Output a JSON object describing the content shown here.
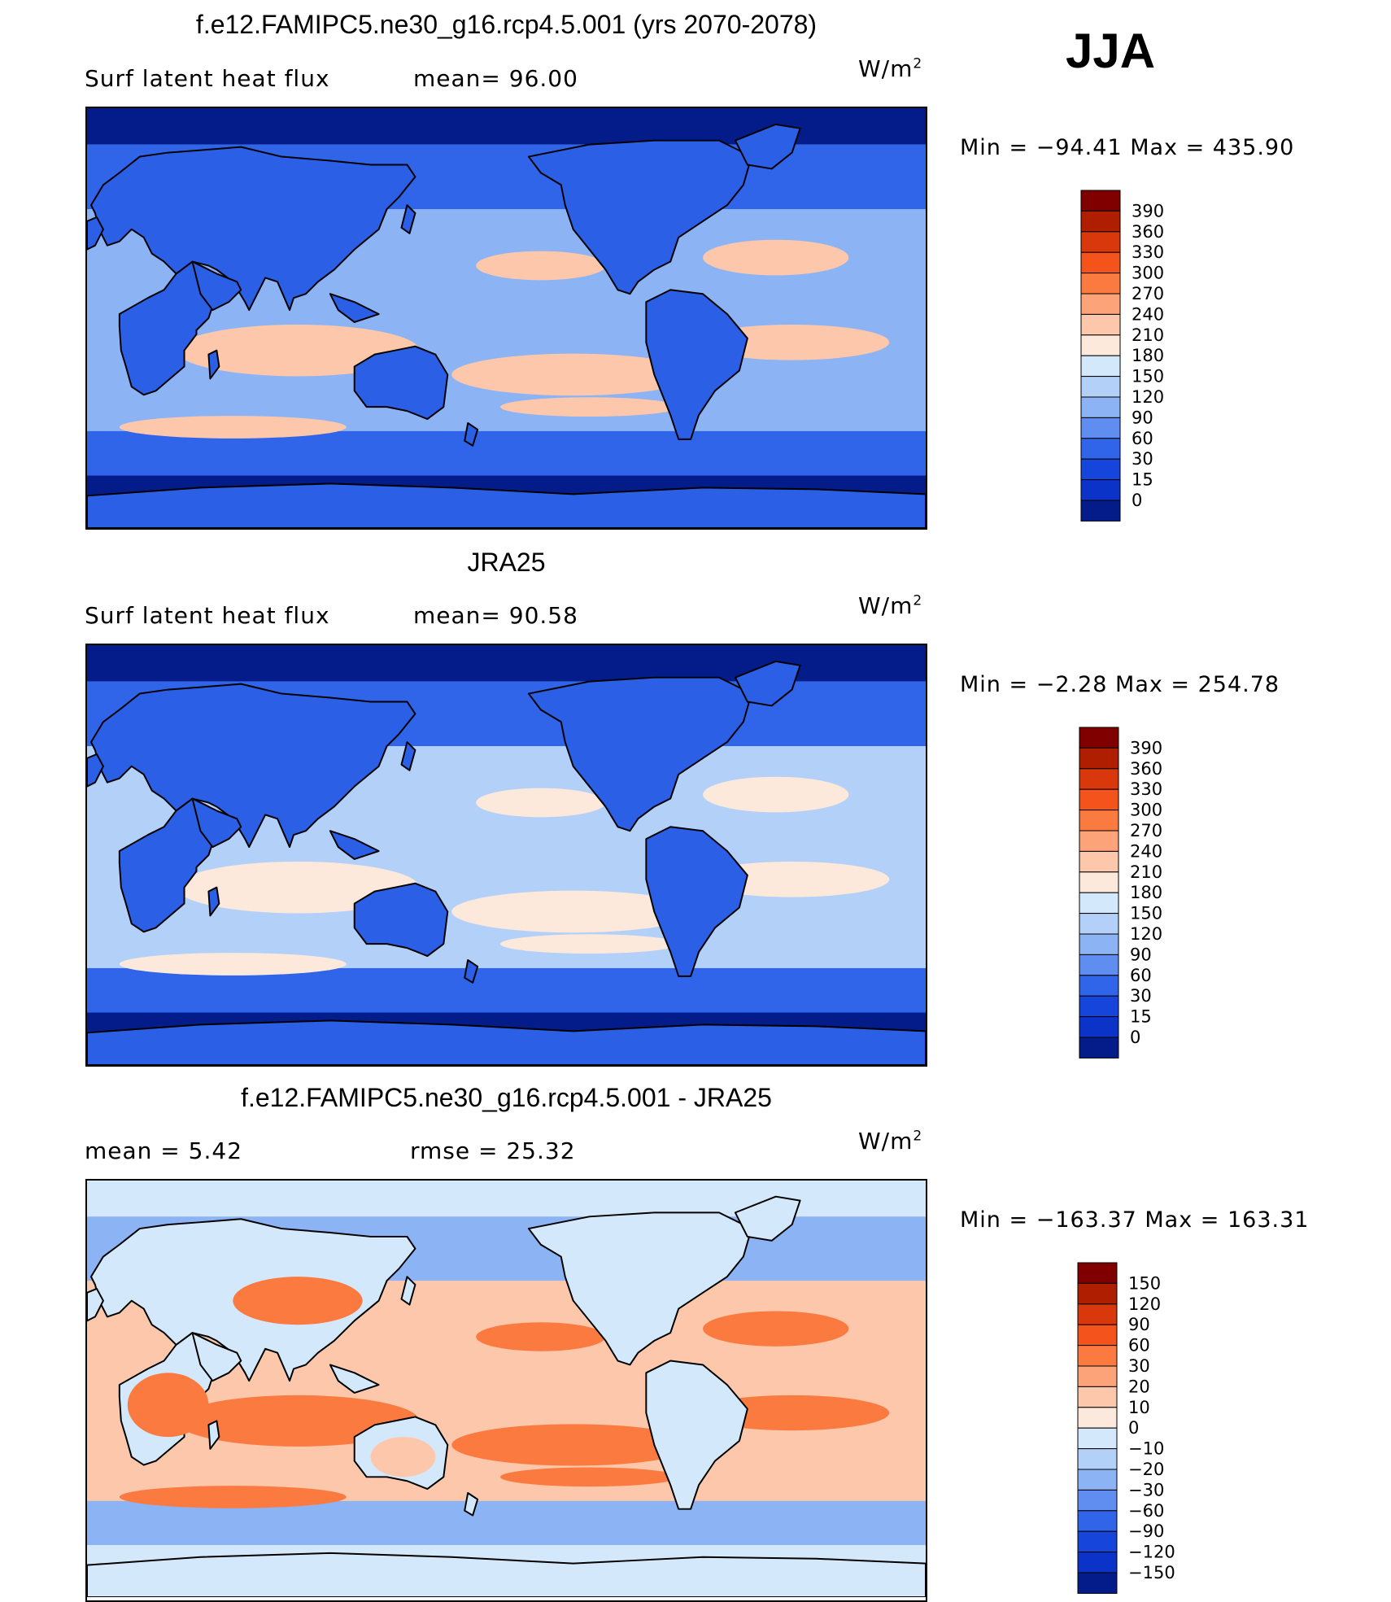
{
  "season": "JJA",
  "panels": [
    {
      "id": "model",
      "title": "f.e12.FAMIPC5.ne30_g16.rcp4.5.001 (yrs 2070-2078)",
      "subtitle_left": "Surf  latent  heat  flux",
      "subtitle_mid": "mean=   96.00",
      "units_base": "W/m",
      "units_exp": "2",
      "minmax": "Min  =  −94.41  Max  =  435.90",
      "colorbar_levels": [
        "390",
        "360",
        "330",
        "300",
        "270",
        "240",
        "210",
        "180",
        "150",
        "120",
        "90",
        "60",
        "30",
        "15",
        "0"
      ],
      "colorbar_colors": [
        "#800000",
        "#b01e00",
        "#d8380c",
        "#f5531c",
        "#fb7a40",
        "#fca37a",
        "#fdc7ac",
        "#fde8dc",
        "#d4e8fb",
        "#b3d0f8",
        "#8cb3f3",
        "#5f8df0",
        "#3065ea",
        "#1645dc",
        "#0b33c8",
        "#031c8a"
      ],
      "colors": {
        "ocean_high": "#fdc7ac",
        "ocean_mid": "#8cb3f3",
        "ocean_low": "#3065ea",
        "land": "#2b5fe6",
        "polar": "#031c8a"
      }
    },
    {
      "id": "obs",
      "title": "JRA25",
      "subtitle_left": "Surf  latent  heat  flux",
      "subtitle_mid": "mean=   90.58",
      "units_base": "W/m",
      "units_exp": "2",
      "minmax": "Min  =   −2.28  Max  =  254.78",
      "colorbar_levels": [
        "390",
        "360",
        "330",
        "300",
        "270",
        "240",
        "210",
        "180",
        "150",
        "120",
        "90",
        "60",
        "30",
        "15",
        "0"
      ],
      "colorbar_colors": [
        "#800000",
        "#b01e00",
        "#d8380c",
        "#f5531c",
        "#fb7a40",
        "#fca37a",
        "#fdc7ac",
        "#fde8dc",
        "#d4e8fb",
        "#b3d0f8",
        "#8cb3f3",
        "#5f8df0",
        "#3065ea",
        "#1645dc",
        "#0b33c8",
        "#031c8a"
      ],
      "colors": {
        "ocean_high": "#fde8dc",
        "ocean_mid": "#b3d0f8",
        "ocean_low": "#3065ea",
        "land": "#2b5fe6",
        "polar": "#031c8a"
      }
    },
    {
      "id": "diff",
      "title": "f.e12.FAMIPC5.ne30_g16.rcp4.5.001 - JRA25",
      "subtitle_left": "mean  =      5.42",
      "subtitle_mid": "rmse  =    25.32",
      "units_base": "W/m",
      "units_exp": "2",
      "minmax": "Min  =  −163.37  Max  =  163.31",
      "colorbar_levels": [
        "150",
        "120",
        "90",
        "60",
        "30",
        "20",
        "10",
        "0",
        "−10",
        "−20",
        "−30",
        "−60",
        "−90",
        "−120",
        "−150"
      ],
      "colorbar_colors": [
        "#800000",
        "#b01e00",
        "#d8380c",
        "#f5531c",
        "#fb7a40",
        "#fca37a",
        "#fdc7ac",
        "#fde8dc",
        "#d4e8fb",
        "#b3d0f8",
        "#8cb3f3",
        "#5f8df0",
        "#3065ea",
        "#1645dc",
        "#0b33c8",
        "#031c8a"
      ],
      "colors": {
        "ocean_high": "#fb7a40",
        "ocean_mid": "#fdc7ac",
        "ocean_low": "#8cb3f3",
        "land": "#d4e8fb",
        "polar": "#d4e8fb"
      }
    }
  ]
}
